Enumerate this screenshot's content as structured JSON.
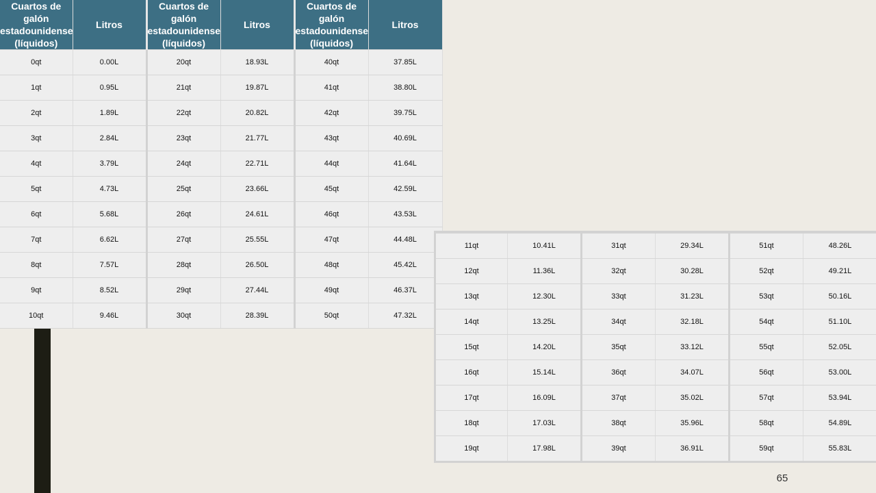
{
  "headers": {
    "quarts": "Cuartos de galón estadounidenses (líquidos)",
    "liters": "Litros"
  },
  "table_top": {
    "rows": [
      [
        "0qt",
        "0.00L",
        "20qt",
        "18.93L",
        "40qt",
        "37.85L"
      ],
      [
        "1qt",
        "0.95L",
        "21qt",
        "19.87L",
        "41qt",
        "38.80L"
      ],
      [
        "2qt",
        "1.89L",
        "22qt",
        "20.82L",
        "42qt",
        "39.75L"
      ],
      [
        "3qt",
        "2.84L",
        "23qt",
        "21.77L",
        "43qt",
        "40.69L"
      ],
      [
        "4qt",
        "3.79L",
        "24qt",
        "22.71L",
        "44qt",
        "41.64L"
      ],
      [
        "5qt",
        "4.73L",
        "25qt",
        "23.66L",
        "45qt",
        "42.59L"
      ],
      [
        "6qt",
        "5.68L",
        "26qt",
        "24.61L",
        "46qt",
        "43.53L"
      ],
      [
        "7qt",
        "6.62L",
        "27qt",
        "25.55L",
        "47qt",
        "44.48L"
      ],
      [
        "8qt",
        "7.57L",
        "28qt",
        "26.50L",
        "48qt",
        "45.42L"
      ],
      [
        "9qt",
        "8.52L",
        "29qt",
        "27.44L",
        "49qt",
        "46.37L"
      ],
      [
        "10qt",
        "9.46L",
        "30qt",
        "28.39L",
        "50qt",
        "47.32L"
      ]
    ]
  },
  "table_bottom": {
    "rows": [
      [
        "11qt",
        "10.41L",
        "31qt",
        "29.34L",
        "51qt",
        "48.26L"
      ],
      [
        "12qt",
        "11.36L",
        "32qt",
        "30.28L",
        "52qt",
        "49.21L"
      ],
      [
        "13qt",
        "12.30L",
        "33qt",
        "31.23L",
        "53qt",
        "50.16L"
      ],
      [
        "14qt",
        "13.25L",
        "34qt",
        "32.18L",
        "54qt",
        "51.10L"
      ],
      [
        "15qt",
        "14.20L",
        "35qt",
        "33.12L",
        "55qt",
        "52.05L"
      ],
      [
        "16qt",
        "15.14L",
        "36qt",
        "34.07L",
        "56qt",
        "53.00L"
      ],
      [
        "17qt",
        "16.09L",
        "37qt",
        "35.02L",
        "57qt",
        "53.94L"
      ],
      [
        "18qt",
        "17.03L",
        "38qt",
        "35.96L",
        "58qt",
        "54.89L"
      ],
      [
        "19qt",
        "17.98L",
        "39qt",
        "36.91L",
        "59qt",
        "55.83L"
      ]
    ]
  },
  "page_number": "65",
  "colors": {
    "header_bg": "#3d6f84",
    "cell_bg": "#eeeeee",
    "page_bg": "#eeebe4",
    "side_bar": "#1d1d14"
  }
}
